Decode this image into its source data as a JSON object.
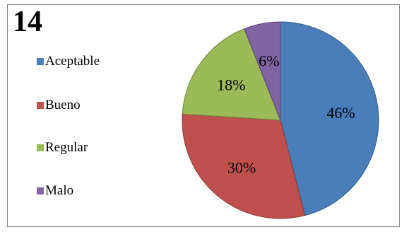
{
  "chart_data": {
    "type": "pie",
    "title": "14",
    "categories": [
      "Aceptable",
      "Bueno",
      "Regular",
      "Malo"
    ],
    "values": [
      46,
      30,
      18,
      6
    ],
    "data_labels": [
      "46%",
      "30%",
      "18%",
      "6%"
    ],
    "colors": [
      "#4a7ebb",
      "#c0504d",
      "#9bbb59",
      "#8064a2"
    ],
    "legend_position": "left"
  }
}
